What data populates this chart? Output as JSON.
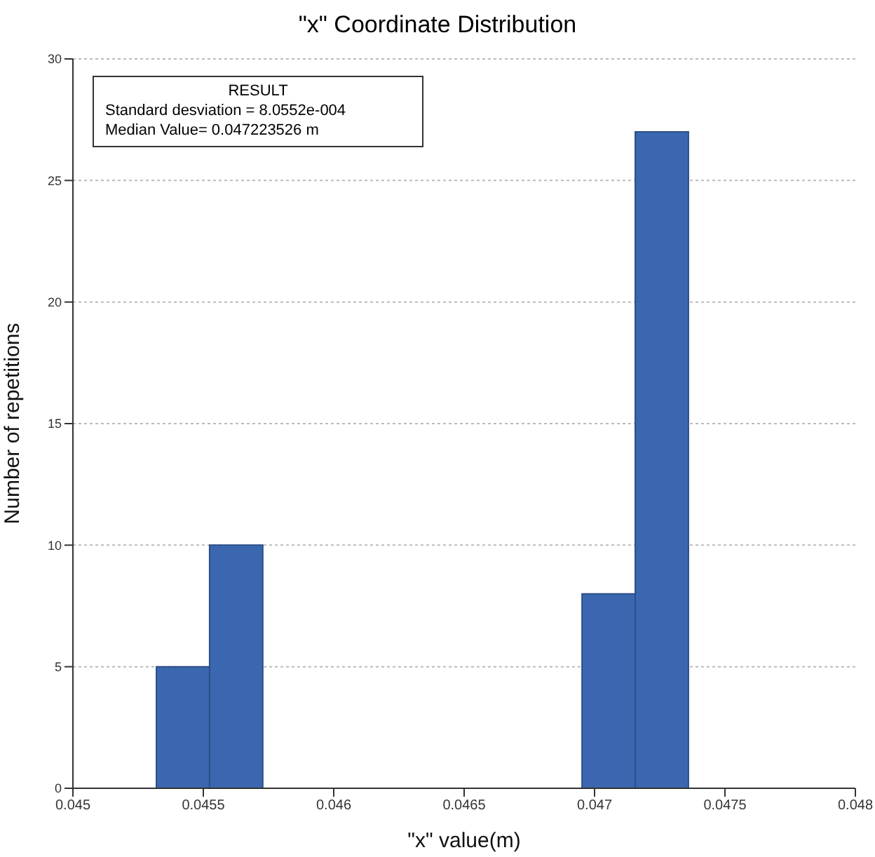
{
  "chart_data": {
    "type": "histogram",
    "title": "\"x\" Coordinate Distribution",
    "xlabel": "\"x\" value(m)",
    "ylabel": "Number of repetitions",
    "bins": [
      0.04532,
      0.045524,
      0.045728,
      0.045932,
      0.046136,
      0.04634,
      0.046544,
      0.046748,
      0.046952,
      0.047156,
      0.04736
    ],
    "values": [
      5,
      10,
      0,
      0,
      0,
      0,
      0,
      0,
      8,
      27
    ],
    "color": "#3a67b0",
    "xlim": [
      0.045,
      0.048
    ],
    "xticks": [
      0.045,
      0.0455,
      0.046,
      0.0465,
      0.047,
      0.0475,
      0.048
    ],
    "ylim": [
      0,
      30
    ],
    "yticks": [
      0,
      5,
      10,
      15,
      20,
      25,
      30
    ],
    "grid": "y",
    "annotations": [
      "RESULT",
      "Standard desviation = 8.0552e-004",
      "Median Value= 0.047223526 m"
    ]
  }
}
